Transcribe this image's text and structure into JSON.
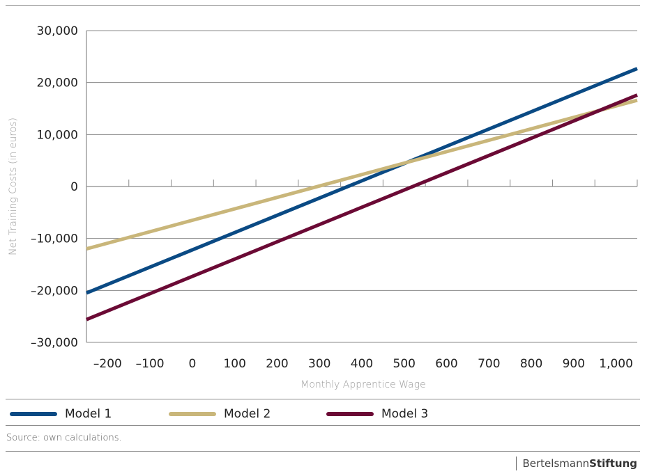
{
  "chart_data": {
    "type": "line",
    "title": "",
    "xlabel": "Monthly Apprentice Wage",
    "ylabel": "Net Training Costs (in euros)",
    "xlim": [
      -250,
      1050
    ],
    "ylim": [
      -30000,
      30000
    ],
    "x_ticks": [
      -200,
      -100,
      0,
      100,
      200,
      300,
      400,
      500,
      600,
      700,
      800,
      900,
      1000
    ],
    "x_tick_labels": [
      "–200",
      "–100",
      "0",
      "100",
      "200",
      "300",
      "400",
      "500",
      "600",
      "700",
      "800",
      "900",
      "1,000"
    ],
    "y_ticks": [
      30000,
      20000,
      10000,
      0,
      -10000,
      -20000,
      -30000
    ],
    "y_tick_labels": [
      "30,000",
      "20,000",
      "10,000",
      "0",
      "–10,000",
      "–20,000",
      "–30,000"
    ],
    "grid": "horizontal",
    "legend_position": "bottom",
    "series": [
      {
        "name": "Model 1",
        "color": "#0a4a84",
        "x": [
          -250,
          1050
        ],
        "y": [
          -20500,
          22700
        ]
      },
      {
        "name": "Model 2",
        "color": "#c9b67a",
        "x": [
          -250,
          1050
        ],
        "y": [
          -12000,
          16600
        ]
      },
      {
        "name": "Model 3",
        "color": "#6b0a35",
        "x": [
          -250,
          1050
        ],
        "y": [
          -25600,
          17600
        ]
      }
    ]
  },
  "footer": {
    "source": "Source: own calculations.",
    "brand_regular": "Bertelsmann",
    "brand_bold": "Stiftung"
  }
}
